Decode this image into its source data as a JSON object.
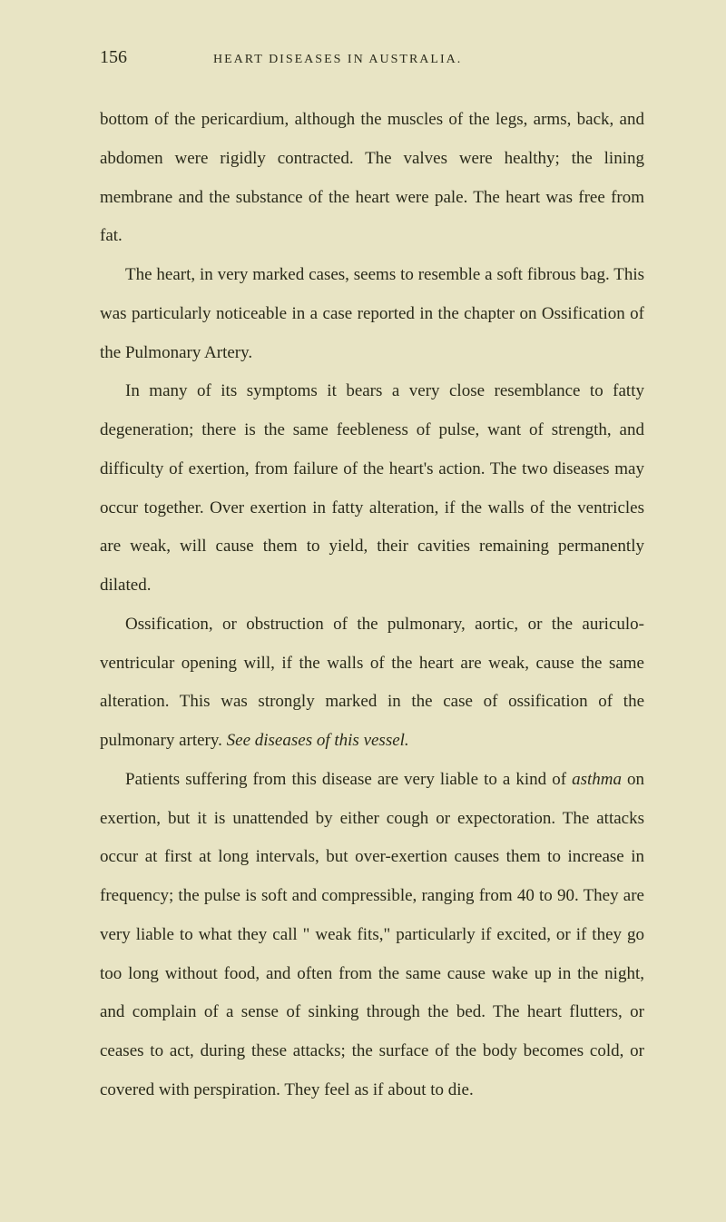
{
  "page": {
    "number": "156",
    "running_title": "HEART DISEASES IN AUSTRALIA.",
    "paragraphs": [
      "bottom of the pericardium, although the muscles of the legs, arms, back, and abdomen were rigidly contracted. The valves were healthy; the lining membrane and the substance of the heart were pale. The heart was free from fat.",
      "The heart, in very marked cases, seems to resemble a soft fibrous bag. This was particularly noticeable in a case reported in the chapter on Ossification of the Pulmonary Artery.",
      "In many of its symptoms it bears a very close resemblance to fatty degeneration; there is the same feebleness of pulse, want of strength, and difficulty of exertion, from failure of the heart's action. The two diseases may occur together. Over exertion in fatty alteration, if the walls of the ventricles are weak, will cause them to yield, their cavities remaining permanently dilated.",
      "Ossification, or obstruction of the pulmonary, aortic, or the auriculo-ventricular opening will, if the walls of the heart are weak, cause the same alteration. This was strongly marked in the case of ossification of the pulmonary artery. ",
      "Patients suffering from this disease are very liable to a kind of ",
      " on exertion, but it is unattended by either cough or expectoration. The attacks occur at first at long intervals, but over-exertion causes them to increase in frequency; the pulse is soft and compressible, ranging from 40 to 90. They are very liable to what they call \" weak fits,\" particularly if excited, or if they go too long without food, and often from the same cause wake up in the night, and complain of a sense of sinking through the bed. The heart flutters, or ceases to act, during these attacks; the surface of the body becomes cold, or covered with perspiration. They feel as if about to die."
    ],
    "italic_phrase_1": "See diseases of this vessel.",
    "italic_word_1": "asthma"
  },
  "colors": {
    "background": "#e8e4c4",
    "text": "#2a2a1a"
  },
  "typography": {
    "body_fontsize": 19,
    "line_height": 2.25,
    "header_fontsize": 14,
    "page_number_fontsize": 20
  }
}
